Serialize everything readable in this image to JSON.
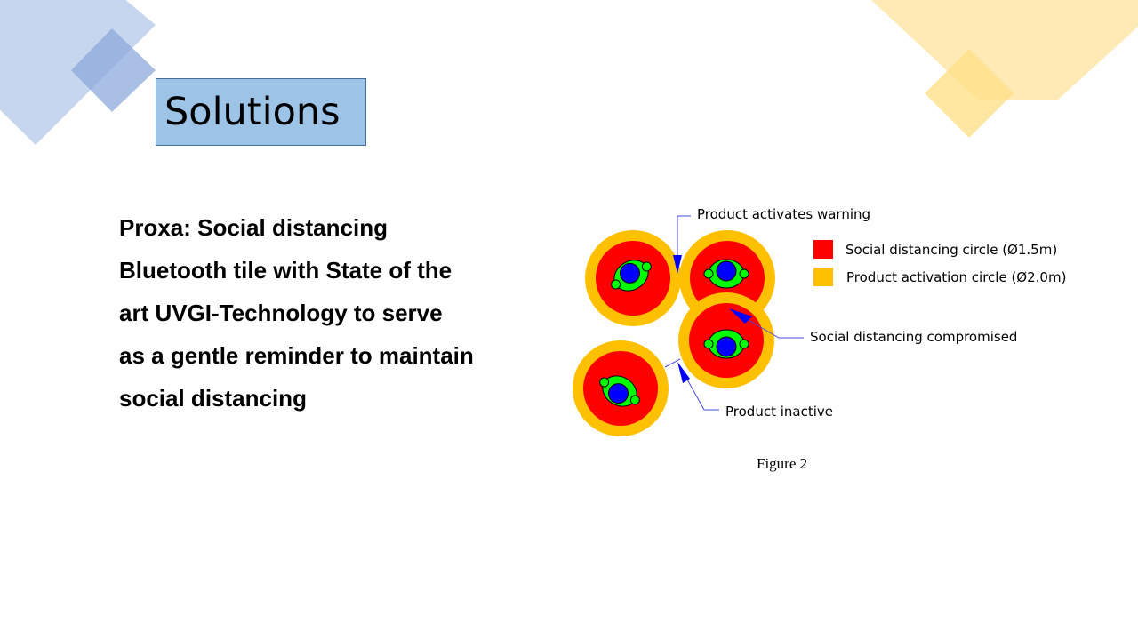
{
  "slide": {
    "title": "Solutions",
    "body_lines": [
      "Proxa: Social distancing",
      "Bluetooth tile with State of the",
      "art UVGI-Technology to serve",
      "as a gentle reminder to maintain",
      "social distancing"
    ]
  },
  "figure": {
    "caption": "Figure 2",
    "callouts": {
      "warning": "Product activates warning",
      "compromised": "Social distancing compromised",
      "inactive": "Product inactive"
    },
    "legend": [
      {
        "label": "Social distancing circle (Ø1.5m)",
        "color": "#ff0000"
      },
      {
        "label": "Product activation circle (Ø2.0m)",
        "color": "#ffc000"
      }
    ]
  },
  "colors": {
    "title_fill": "#9dc3e6",
    "deco_blue": "#4472c4",
    "deco_yellow": "#ffc000",
    "person_body": "#00ff00",
    "person_head": "#0000ff"
  }
}
